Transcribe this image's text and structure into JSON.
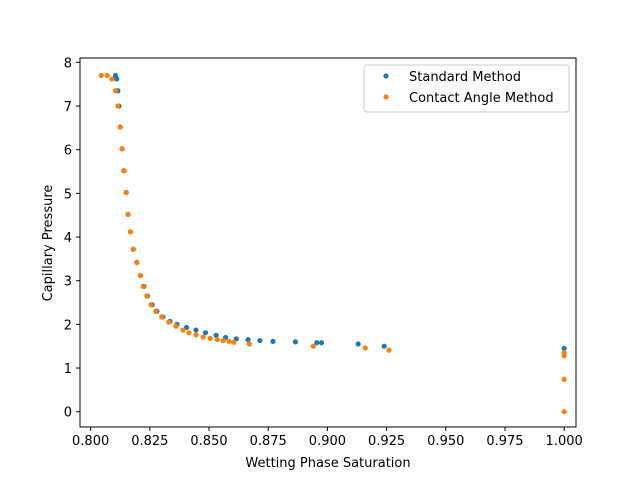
{
  "chart_data": {
    "type": "scatter",
    "title": "",
    "xlabel": "Wetting Phase Saturation",
    "ylabel": "Capillary Pressure",
    "xlim": [
      0.7955,
      1.005
    ],
    "ylim": [
      -0.35,
      8.1
    ],
    "xticks": [
      0.8,
      0.825,
      0.85,
      0.875,
      0.9,
      0.925,
      0.95,
      0.975,
      1.0
    ],
    "xtick_labels": [
      "0.800",
      "0.825",
      "0.850",
      "0.875",
      "0.900",
      "0.925",
      "0.950",
      "0.975",
      "1.000"
    ],
    "yticks": [
      0,
      1,
      2,
      3,
      4,
      5,
      6,
      7,
      8
    ],
    "ytick_labels": [
      "0",
      "1",
      "2",
      "3",
      "4",
      "5",
      "6",
      "7",
      "8"
    ],
    "grid": false,
    "legend_position": "top-right",
    "series": [
      {
        "name": "Standard Method",
        "color": "#1f77b4",
        "points": [
          [
            0.8105,
            7.7
          ],
          [
            0.811,
            7.62
          ],
          [
            0.8115,
            7.35
          ],
          [
            0.812,
            7.0
          ],
          [
            0.8125,
            6.52
          ],
          [
            0.8133,
            6.02
          ],
          [
            0.814,
            5.52
          ],
          [
            0.815,
            5.02
          ],
          [
            0.8158,
            4.52
          ],
          [
            0.8168,
            4.12
          ],
          [
            0.818,
            3.72
          ],
          [
            0.8195,
            3.42
          ],
          [
            0.821,
            3.12
          ],
          [
            0.8225,
            2.87
          ],
          [
            0.824,
            2.65
          ],
          [
            0.826,
            2.45
          ],
          [
            0.828,
            2.3
          ],
          [
            0.8305,
            2.17
          ],
          [
            0.8335,
            2.07
          ],
          [
            0.8365,
            2.0
          ],
          [
            0.8405,
            1.93
          ],
          [
            0.8445,
            1.87
          ],
          [
            0.8485,
            1.81
          ],
          [
            0.853,
            1.75
          ],
          [
            0.857,
            1.7
          ],
          [
            0.8615,
            1.67
          ],
          [
            0.8665,
            1.65
          ],
          [
            0.8715,
            1.63
          ],
          [
            0.877,
            1.61
          ],
          [
            0.8865,
            1.6
          ],
          [
            0.8955,
            1.58
          ],
          [
            0.8975,
            1.58
          ],
          [
            0.913,
            1.55
          ],
          [
            0.924,
            1.5
          ],
          [
            1.0,
            1.45
          ]
        ]
      },
      {
        "name": "Contact Angle Method",
        "color": "#ff7f0e",
        "points": [
          [
            0.8045,
            7.7
          ],
          [
            0.807,
            7.7
          ],
          [
            0.809,
            7.62
          ],
          [
            0.8105,
            7.35
          ],
          [
            0.8115,
            7.0
          ],
          [
            0.8125,
            6.52
          ],
          [
            0.8132,
            6.02
          ],
          [
            0.8142,
            5.52
          ],
          [
            0.815,
            5.02
          ],
          [
            0.8158,
            4.52
          ],
          [
            0.8168,
            4.12
          ],
          [
            0.818,
            3.72
          ],
          [
            0.8195,
            3.42
          ],
          [
            0.821,
            3.12
          ],
          [
            0.8222,
            2.87
          ],
          [
            0.8238,
            2.65
          ],
          [
            0.8255,
            2.45
          ],
          [
            0.8275,
            2.3
          ],
          [
            0.83,
            2.17
          ],
          [
            0.833,
            2.05
          ],
          [
            0.836,
            1.96
          ],
          [
            0.839,
            1.87
          ],
          [
            0.8415,
            1.81
          ],
          [
            0.8445,
            1.76
          ],
          [
            0.8475,
            1.71
          ],
          [
            0.8505,
            1.68
          ],
          [
            0.8535,
            1.65
          ],
          [
            0.856,
            1.63
          ],
          [
            0.8585,
            1.61
          ],
          [
            0.8605,
            1.59
          ],
          [
            0.867,
            1.55
          ],
          [
            0.894,
            1.5
          ],
          [
            0.916,
            1.46
          ],
          [
            0.926,
            1.41
          ],
          [
            1.0,
            1.35
          ],
          [
            1.0,
            1.28
          ],
          [
            1.0,
            0.74
          ],
          [
            1.0,
            0.0
          ]
        ]
      }
    ]
  }
}
